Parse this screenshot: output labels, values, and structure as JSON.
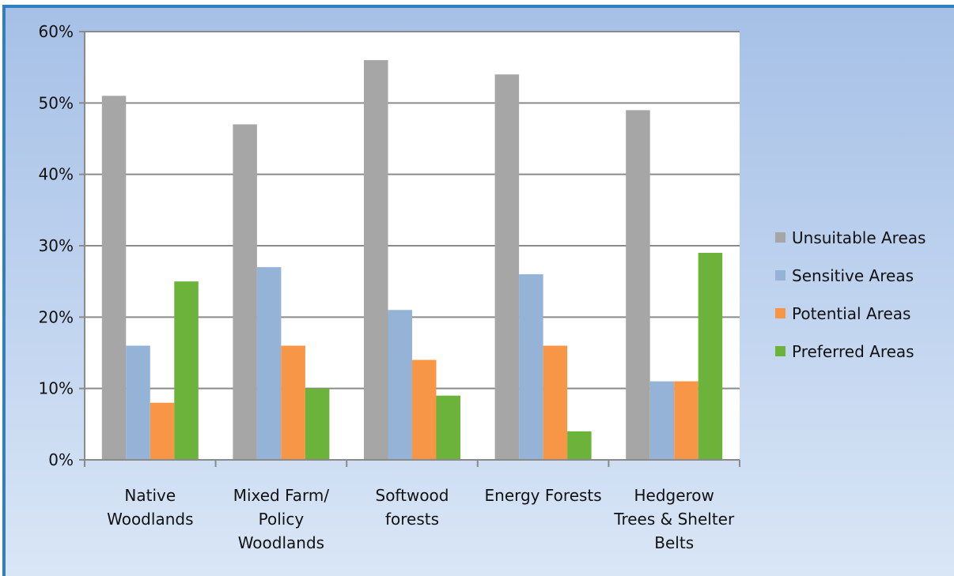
{
  "colors": {
    "frame": "#2f7fc1",
    "plot_bg": "#ffffff",
    "grid": "#8a8a8a"
  },
  "chart_data": {
    "type": "bar",
    "title": "",
    "xlabel": "",
    "ylabel": "",
    "ylim": [
      0,
      60
    ],
    "y_ticks": [
      0,
      10,
      20,
      30,
      40,
      50,
      60
    ],
    "y_tick_labels": [
      "0%",
      "10%",
      "20%",
      "30%",
      "40%",
      "50%",
      "60%"
    ],
    "grid": true,
    "legend_position": "right",
    "categories": [
      [
        "Native",
        "Woodlands"
      ],
      [
        "Mixed Farm/",
        "Policy",
        "Woodlands"
      ],
      [
        "Softwood",
        "forests"
      ],
      [
        "Energy Forests"
      ],
      [
        "Hedgerow",
        "Trees & Shelter",
        "Belts"
      ]
    ],
    "series": [
      {
        "name": "Unsuitable Areas",
        "color": "#a6a6a6",
        "values": [
          51,
          47,
          56,
          54,
          49
        ]
      },
      {
        "name": "Sensitive Areas",
        "color": "#95b3d7",
        "values": [
          16,
          27,
          21,
          26,
          11
        ]
      },
      {
        "name": "Potential Areas",
        "color": "#f79646",
        "values": [
          8,
          16,
          14,
          16,
          11
        ]
      },
      {
        "name": "Preferred Areas",
        "color": "#6bb33a",
        "values": [
          25,
          10,
          9,
          4,
          29
        ]
      }
    ]
  }
}
